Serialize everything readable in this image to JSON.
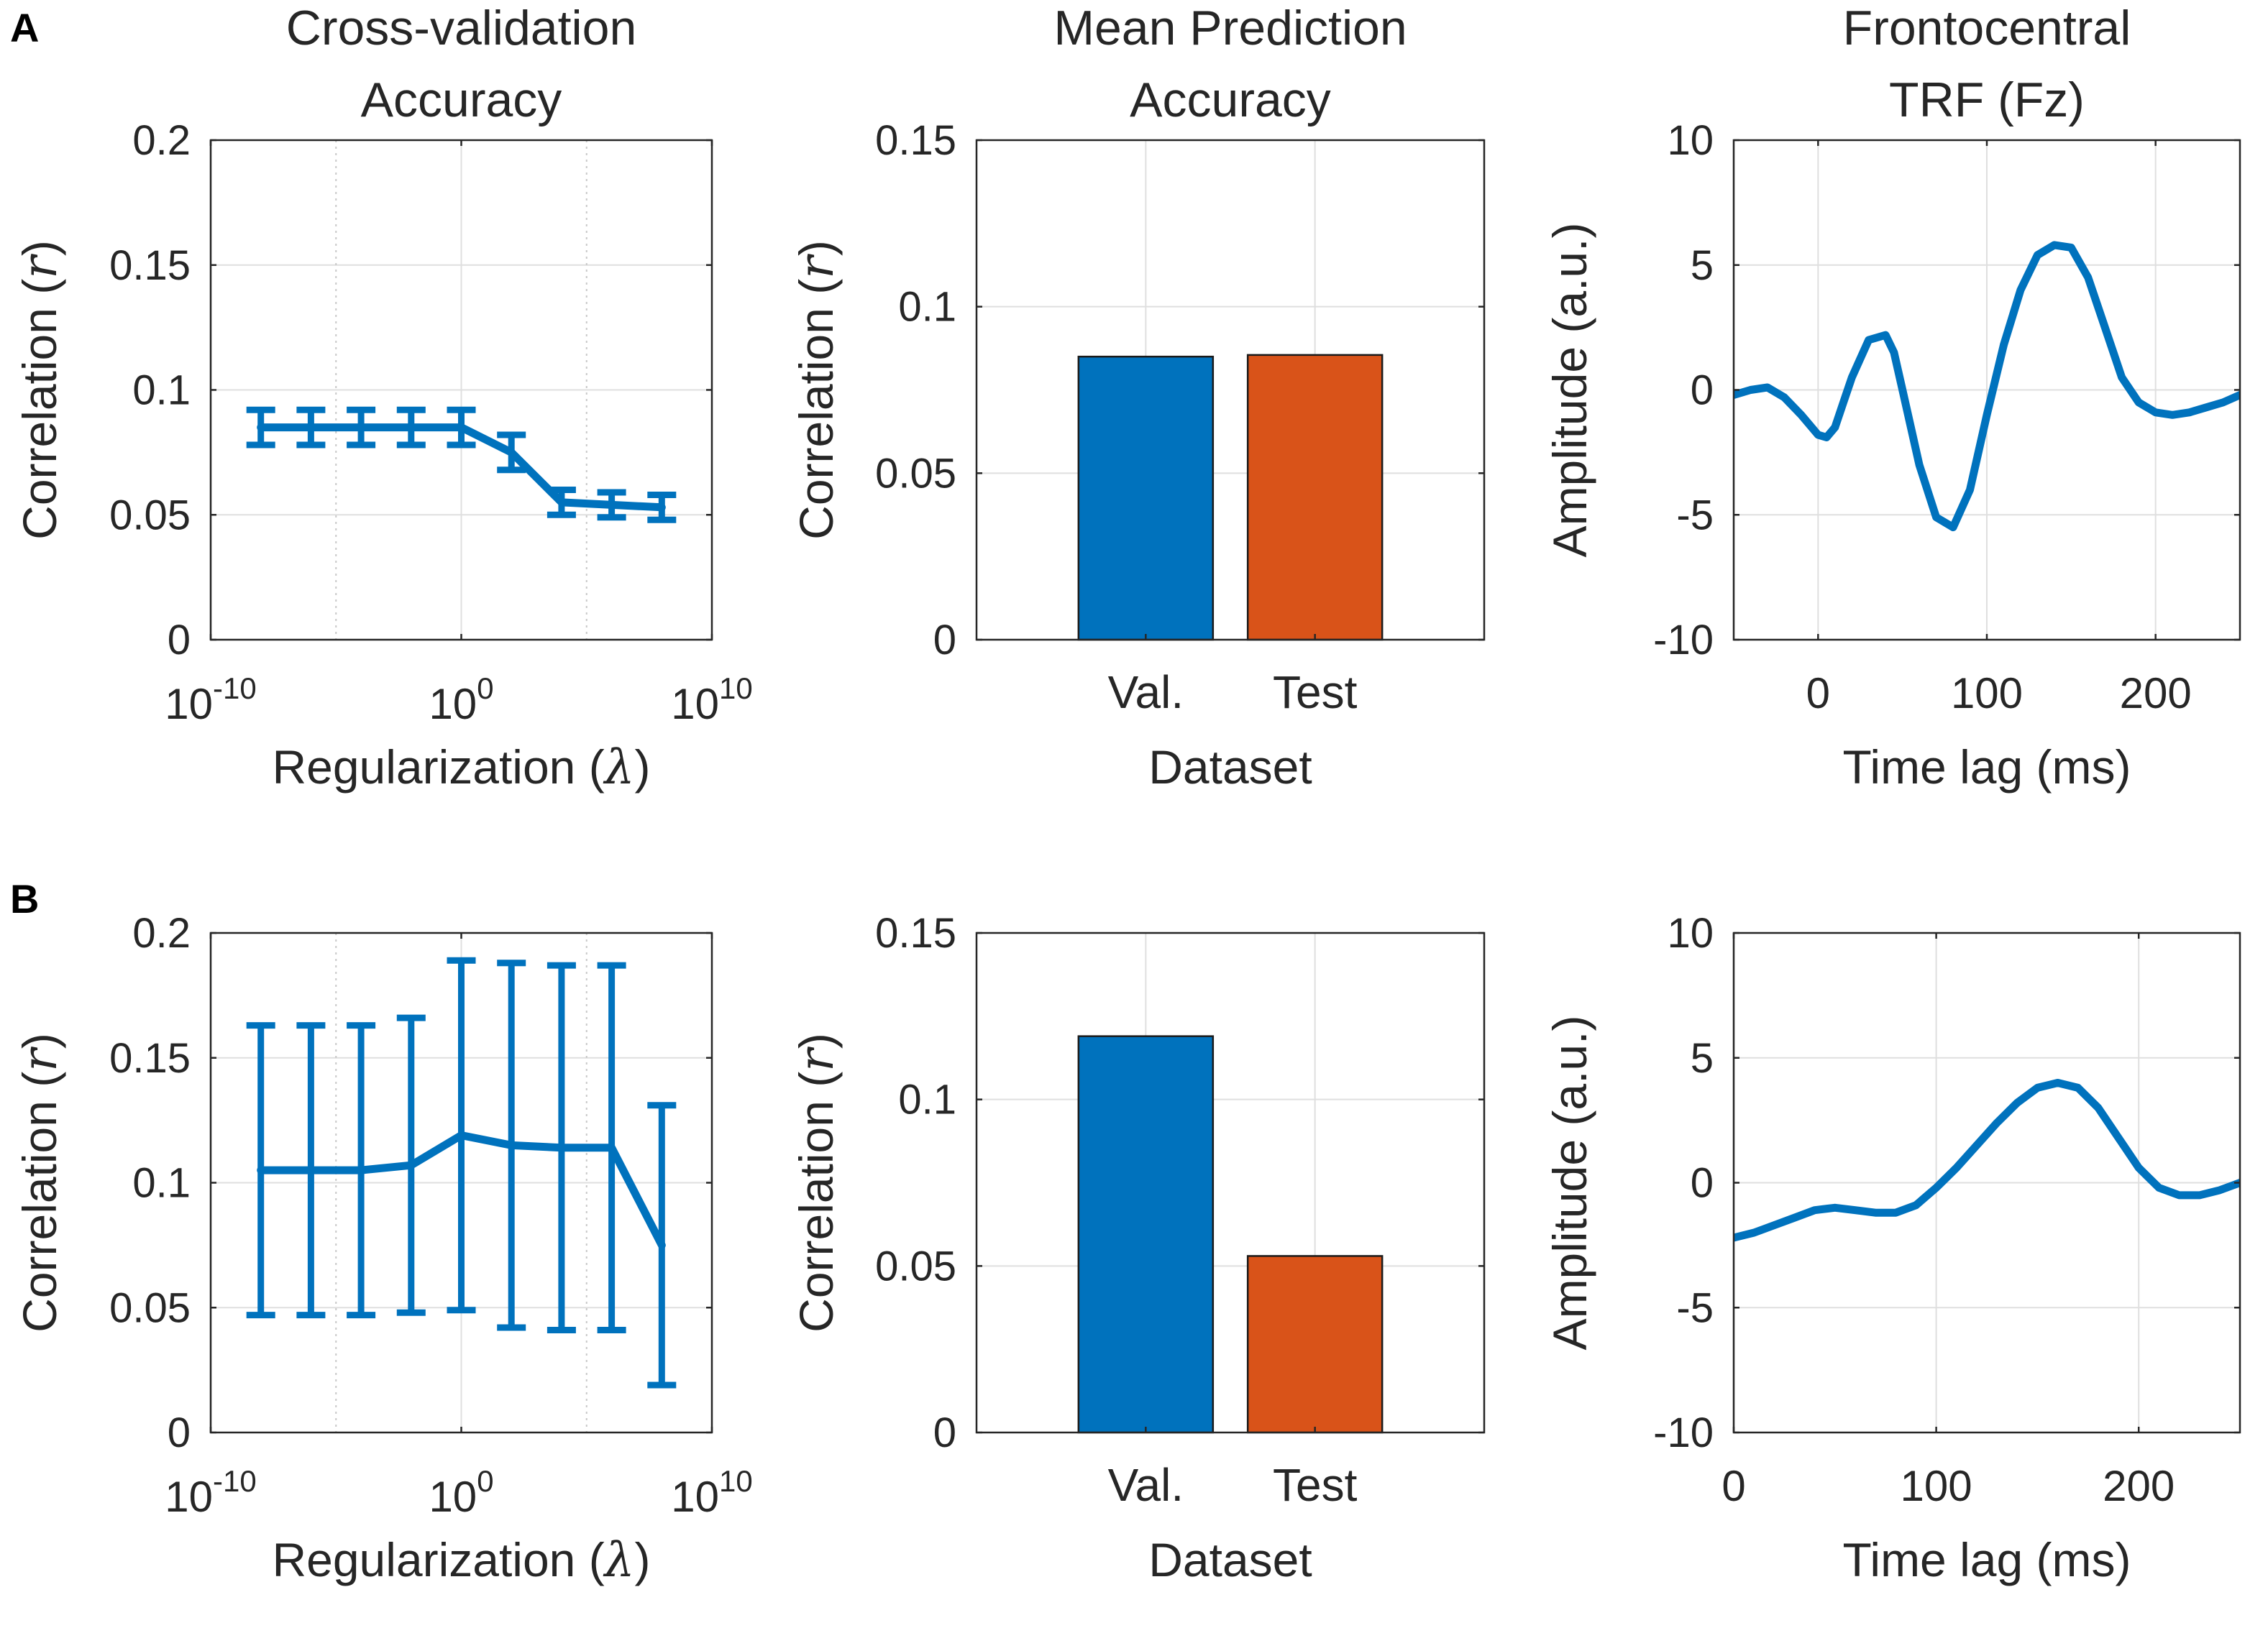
{
  "figure": {
    "panel_labels": [
      "A",
      "B"
    ]
  },
  "colors": {
    "blue": "#0072BD",
    "orange": "#D95319",
    "grid": "#dfdfdf",
    "axis": "#262626"
  },
  "chart_data": [
    {
      "id": "A1",
      "row": "A",
      "type": "line",
      "title": [
        "Cross-validation",
        "Accuracy"
      ],
      "xlabel": "Regularization (λ)",
      "ylabel": "Correlation (r)",
      "xscale": "log",
      "x": [
        1e-08,
        1e-06,
        0.0001,
        0.01,
        1,
        100,
        10000.0,
        1000000.0,
        100000000.0
      ],
      "values": [
        0.085,
        0.085,
        0.085,
        0.085,
        0.085,
        0.075,
        0.055,
        0.054,
        0.053
      ],
      "err": [
        0.007,
        0.007,
        0.007,
        0.007,
        0.007,
        0.007,
        0.005,
        0.005,
        0.005
      ],
      "xlim": [
        1e-10,
        10000000000.0
      ],
      "ylim": [
        0,
        0.2
      ],
      "xticks": [
        {
          "v": 1e-10,
          "base": "10",
          "exp": "-10"
        },
        {
          "v": 1,
          "base": "10",
          "exp": "0"
        },
        {
          "v": 10000000000.0,
          "base": "10",
          "exp": "10"
        }
      ],
      "yticks": [
        0,
        0.05,
        0.1,
        0.15,
        0.2
      ],
      "yticklabels": [
        "0",
        "0.05",
        "0.1",
        "0.15",
        "0.2"
      ],
      "minor_x_grid": [
        1e-05,
        100000.0
      ],
      "grid": true
    },
    {
      "id": "A2",
      "row": "A",
      "type": "bar",
      "title": [
        "Mean Prediction",
        "Accuracy"
      ],
      "xlabel": "Dataset",
      "ylabel": "Correlation (r)",
      "categories": [
        "Val.",
        "Test"
      ],
      "values": [
        0.085,
        0.0855
      ],
      "ylim": [
        0,
        0.15
      ],
      "yticks": [
        0,
        0.05,
        0.1,
        0.15
      ],
      "yticklabels": [
        "0",
        "0.05",
        "0.1",
        "0.15"
      ],
      "grid": true
    },
    {
      "id": "A3",
      "row": "A",
      "type": "line",
      "title": [
        "Frontocentral",
        "TRF (Fz)"
      ],
      "xlabel": "Time lag (ms)",
      "ylabel": "Amplitude (a.u.)",
      "x": [
        -50,
        -40,
        -30,
        -20,
        -10,
        0,
        5,
        10,
        15,
        20,
        30,
        40,
        45,
        50,
        60,
        70,
        80,
        90,
        100,
        110,
        120,
        130,
        140,
        150,
        160,
        170,
        180,
        190,
        200,
        210,
        220,
        230,
        240,
        250
      ],
      "values": [
        -0.2,
        0.0,
        0.1,
        -0.3,
        -1.0,
        -1.8,
        -1.9,
        -1.5,
        -0.5,
        0.5,
        2.0,
        2.2,
        1.5,
        0.0,
        -3.0,
        -5.1,
        -5.5,
        -4.0,
        -1.0,
        1.8,
        4.0,
        5.4,
        5.8,
        5.7,
        4.5,
        2.5,
        0.5,
        -0.5,
        -0.9,
        -1.0,
        -0.9,
        -0.7,
        -0.5,
        -0.2
      ],
      "xlim": [
        -50,
        250
      ],
      "ylim": [
        -10,
        10
      ],
      "xticks": [
        0,
        100,
        200
      ],
      "xticklabels": [
        "0",
        "100",
        "200"
      ],
      "yticks": [
        -10,
        -5,
        0,
        5,
        10
      ],
      "yticklabels": [
        "-10",
        "-5",
        "0",
        "5",
        "10"
      ],
      "grid": true
    },
    {
      "id": "B1",
      "row": "B",
      "type": "line",
      "title": [],
      "xlabel": "Regularization (λ)",
      "ylabel": "Correlation (r)",
      "xscale": "log",
      "x": [
        1e-08,
        1e-06,
        0.0001,
        0.01,
        1,
        100,
        10000.0,
        1000000.0,
        100000000.0
      ],
      "values": [
        0.105,
        0.105,
        0.105,
        0.107,
        0.119,
        0.115,
        0.114,
        0.114,
        0.075
      ],
      "err": [
        0.058,
        0.058,
        0.058,
        0.059,
        0.07,
        0.073,
        0.073,
        0.073,
        0.056
      ],
      "xlim": [
        1e-10,
        10000000000.0
      ],
      "ylim": [
        0,
        0.2
      ],
      "xticks": [
        {
          "v": 1e-10,
          "base": "10",
          "exp": "-10"
        },
        {
          "v": 1,
          "base": "10",
          "exp": "0"
        },
        {
          "v": 10000000000.0,
          "base": "10",
          "exp": "10"
        }
      ],
      "yticks": [
        0,
        0.05,
        0.1,
        0.15,
        0.2
      ],
      "yticklabels": [
        "0",
        "0.05",
        "0.1",
        "0.15",
        "0.2"
      ],
      "minor_x_grid": [
        1e-05,
        100000.0
      ],
      "grid": true
    },
    {
      "id": "B2",
      "row": "B",
      "type": "bar",
      "title": [],
      "xlabel": "Dataset",
      "ylabel": "Correlation (r)",
      "categories": [
        "Val.",
        "Test"
      ],
      "values": [
        0.119,
        0.053
      ],
      "ylim": [
        0,
        0.15
      ],
      "yticks": [
        0,
        0.05,
        0.1,
        0.15
      ],
      "yticklabels": [
        "0",
        "0.05",
        "0.1",
        "0.15"
      ],
      "grid": true
    },
    {
      "id": "B3",
      "row": "B",
      "type": "line",
      "title": [],
      "xlabel": "Time lag (ms)",
      "ylabel": "Amplitude (a.u.)",
      "x": [
        0,
        10,
        20,
        30,
        40,
        50,
        60,
        70,
        80,
        90,
        100,
        110,
        120,
        130,
        140,
        150,
        160,
        170,
        180,
        190,
        200,
        210,
        220,
        230,
        240,
        250
      ],
      "values": [
        -2.2,
        -2.0,
        -1.7,
        -1.4,
        -1.1,
        -1.0,
        -1.1,
        -1.2,
        -1.2,
        -0.9,
        -0.2,
        0.6,
        1.5,
        2.4,
        3.2,
        3.8,
        4.0,
        3.8,
        3.0,
        1.8,
        0.6,
        -0.2,
        -0.5,
        -0.5,
        -0.3,
        0.0
      ],
      "xlim": [
        0,
        250
      ],
      "ylim": [
        -10,
        10
      ],
      "xticks": [
        0,
        100,
        200
      ],
      "xticklabels": [
        "0",
        "100",
        "200"
      ],
      "yticks": [
        -10,
        -5,
        0,
        5,
        10
      ],
      "yticklabels": [
        "-10",
        "-5",
        "0",
        "5",
        "10"
      ],
      "grid": true
    }
  ]
}
